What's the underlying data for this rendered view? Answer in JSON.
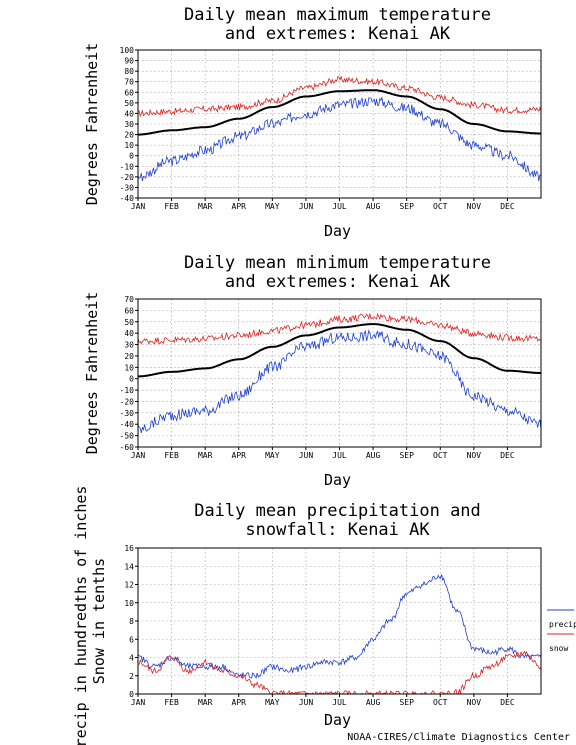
{
  "credit": "NOAA-CIRES/Climate Diagnostics Center",
  "colors": {
    "mean": "#000000",
    "max_extreme": "#e02020",
    "min_extreme": "#2040d0",
    "precip": "#2040d0",
    "snow": "#e02020"
  },
  "chart_data": [
    {
      "type": "line",
      "title": [
        "Daily mean maximum temperature",
        "and extremes: Kenai AK"
      ],
      "xlabel": "Day",
      "ylabel": "Degrees Fahrenheit",
      "x_ticks": [
        "JAN",
        "FEB",
        "MAR",
        "APR",
        "MAY",
        "JUN",
        "JUL",
        "AUG",
        "SEP",
        "OCT",
        "NOV",
        "DEC"
      ],
      "ylim": [
        -40,
        100
      ],
      "yticks": [
        -40,
        -30,
        -20,
        -10,
        0,
        10,
        20,
        30,
        40,
        50,
        60,
        70,
        80,
        90,
        100
      ],
      "grid": true,
      "x": [
        "Jan 1",
        "Feb 1",
        "Mar 1",
        "Apr 1",
        "May 1",
        "Jun 1",
        "Jul 1",
        "Aug 1",
        "Sep 1",
        "Oct 1",
        "Nov 1",
        "Dec 1",
        "Dec 31"
      ],
      "series": [
        {
          "role": "record-high",
          "color": "#e02020",
          "values": [
            40,
            42,
            44,
            46,
            52,
            64,
            72,
            70,
            64,
            55,
            48,
            43,
            44
          ]
        },
        {
          "role": "mean",
          "color": "#000000",
          "values": [
            20,
            24,
            27,
            35,
            46,
            56,
            61,
            62,
            56,
            44,
            30,
            23,
            21
          ]
        },
        {
          "role": "record-low",
          "color": "#2040d0",
          "values": [
            -20,
            -5,
            5,
            18,
            30,
            40,
            48,
            52,
            45,
            30,
            10,
            0,
            -20
          ]
        }
      ]
    },
    {
      "type": "line",
      "title": [
        "Daily mean minimum temperature",
        "and extremes: Kenai AK"
      ],
      "xlabel": "Day",
      "ylabel": "Degrees Fahrenheit",
      "x_ticks": [
        "JAN",
        "FEB",
        "MAR",
        "APR",
        "MAY",
        "JUN",
        "JUL",
        "AUG",
        "SEP",
        "OCT",
        "NOV",
        "DEC"
      ],
      "ylim": [
        -60,
        70
      ],
      "yticks": [
        -60,
        -50,
        -40,
        -30,
        -20,
        -10,
        0,
        10,
        20,
        30,
        40,
        50,
        60,
        70
      ],
      "grid": true,
      "x": [
        "Jan 1",
        "Feb 1",
        "Mar 1",
        "Apr 1",
        "May 1",
        "Jun 1",
        "Jul 1",
        "Aug 1",
        "Sep 1",
        "Oct 1",
        "Nov 1",
        "Dec 1",
        "Dec 31"
      ],
      "series": [
        {
          "role": "record-high",
          "color": "#e02020",
          "values": [
            33,
            34,
            35,
            38,
            42,
            47,
            52,
            55,
            52,
            47,
            40,
            36,
            35
          ]
        },
        {
          "role": "mean",
          "color": "#000000",
          "values": [
            2,
            6,
            9,
            17,
            28,
            38,
            45,
            48,
            43,
            33,
            18,
            7,
            5
          ]
        },
        {
          "role": "record-low",
          "color": "#2040d0",
          "values": [
            -45,
            -32,
            -28,
            -15,
            10,
            28,
            36,
            38,
            30,
            20,
            -15,
            -28,
            -40
          ]
        }
      ]
    },
    {
      "type": "line",
      "title": [
        "Daily mean precipitation and",
        "snowfall: Kenai AK"
      ],
      "xlabel": "Day",
      "ylabel": [
        "Precip in hundredths of inches",
        "Snow in tenths"
      ],
      "x_ticks": [
        "JAN",
        "FEB",
        "MAR",
        "APR",
        "MAY",
        "JUN",
        "JUL",
        "AUG",
        "SEP",
        "OCT",
        "NOV",
        "DEC"
      ],
      "ylim": [
        0,
        16
      ],
      "yticks": [
        0,
        2,
        4,
        6,
        8,
        10,
        12,
        14,
        16
      ],
      "grid": true,
      "legend": {
        "position": "right",
        "entries": [
          {
            "label": "precip",
            "color": "#2040d0"
          },
          {
            "label": "snow",
            "color": "#e02020"
          }
        ]
      },
      "x": [
        "Jan 1",
        "Jan 15",
        "Feb 1",
        "Feb 15",
        "Mar 1",
        "Mar 15",
        "Apr 1",
        "Apr 15",
        "May 1",
        "May 15",
        "Jun 1",
        "Jun 15",
        "Jul 1",
        "Jul 15",
        "Aug 1",
        "Aug 15",
        "Sep 1",
        "Sep 15",
        "Oct 1",
        "Oct 15",
        "Nov 1",
        "Nov 15",
        "Dec 1",
        "Dec 15",
        "Dec 31"
      ],
      "series": [
        {
          "name": "precip",
          "color": "#2040d0",
          "values": [
            4,
            3,
            4,
            3,
            3,
            3,
            2,
            2,
            3,
            2.5,
            3,
            3.5,
            3.5,
            4,
            6,
            8,
            11,
            12,
            13,
            9,
            5,
            4.5,
            5,
            4,
            4
          ]
        },
        {
          "name": "snow",
          "color": "#e02020",
          "values": [
            3.5,
            2.5,
            4,
            2.5,
            3.5,
            2.5,
            2,
            1,
            0.1,
            0,
            0,
            0,
            0,
            0,
            0,
            0,
            0,
            0,
            0,
            0.2,
            2,
            3,
            4,
            4.5,
            3
          ]
        }
      ]
    }
  ]
}
